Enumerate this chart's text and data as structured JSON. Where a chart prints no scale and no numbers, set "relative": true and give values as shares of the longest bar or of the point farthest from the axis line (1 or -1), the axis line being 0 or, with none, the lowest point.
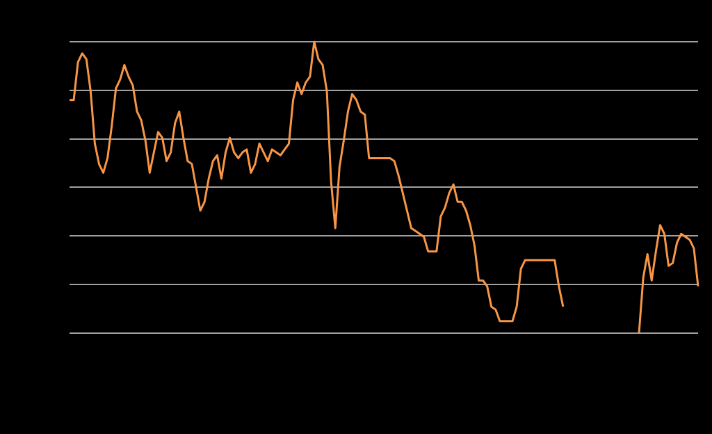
{
  "chart_data": {
    "type": "line",
    "relative": true,
    "grid": "y",
    "legend": false,
    "marker": "none",
    "line_style": "solid",
    "categories": [
      null,
      null,
      null,
      null,
      null,
      null,
      null,
      null,
      null,
      null,
      null,
      null,
      null,
      null,
      null,
      null,
      null,
      null,
      null,
      null,
      null,
      null,
      null,
      null,
      null,
      null,
      null,
      null,
      null,
      null,
      null,
      null,
      null,
      null,
      null,
      null,
      null,
      null,
      null,
      null,
      null,
      null,
      null,
      null,
      null,
      null,
      null,
      null,
      null,
      null,
      null,
      null,
      null,
      null,
      null,
      null,
      null,
      null,
      null,
      null,
      null,
      null,
      null,
      null,
      null,
      null,
      null,
      null,
      null,
      null,
      null,
      null,
      null,
      null,
      null,
      null,
      null,
      null,
      null,
      null,
      null,
      null,
      null,
      null,
      null,
      null,
      null,
      null,
      null,
      null,
      null,
      null,
      null,
      null,
      null,
      null,
      null,
      null,
      null,
      null,
      null,
      null,
      null,
      null,
      null,
      null,
      null,
      null,
      null,
      null,
      null,
      null,
      null,
      null,
      null,
      null,
      null,
      null,
      null,
      null,
      null,
      null,
      null,
      null,
      null,
      null,
      null,
      null,
      null,
      null,
      null,
      null,
      null,
      null,
      null,
      null,
      null,
      null,
      null,
      null,
      null,
      null,
      null,
      null,
      null,
      null,
      null,
      null,
      null,
      null
    ],
    "series": [
      {
        "color": "#f79646",
        "values": [
          0.8,
          0.8,
          0.93,
          0.96,
          0.94,
          0.83,
          0.65,
          0.58,
          0.55,
          0.6,
          0.71,
          0.84,
          0.87,
          0.92,
          0.88,
          0.85,
          0.76,
          0.73,
          0.66,
          0.55,
          0.62,
          0.69,
          0.67,
          0.59,
          0.62,
          0.72,
          0.76,
          0.67,
          0.59,
          0.58,
          0.5,
          0.42,
          0.45,
          0.53,
          0.59,
          0.61,
          0.53,
          0.62,
          0.67,
          0.62,
          0.6,
          0.62,
          0.63,
          0.55,
          0.58,
          0.65,
          0.62,
          0.59,
          0.63,
          0.62,
          0.61,
          0.63,
          0.65,
          0.8,
          0.86,
          0.82,
          0.86,
          0.88,
          1,
          0.94,
          0.92,
          0.83,
          0.52,
          0.36,
          0.57,
          0.66,
          0.76,
          0.82,
          0.8,
          0.76,
          0.75,
          0.6,
          0.6,
          0.6,
          0.6,
          0.6,
          0.6,
          0.59,
          0.54,
          0.48,
          0.42,
          0.36,
          0.35,
          0.34,
          0.33,
          0.28,
          0.28,
          0.28,
          0.4,
          0.43,
          0.48,
          0.51,
          0.45,
          0.45,
          0.42,
          0.37,
          0.3,
          0.18,
          0.18,
          0.16,
          0.09,
          0.08,
          0.04,
          0.04,
          0.04,
          0.04,
          0.09,
          0.22,
          0.25,
          0.25,
          0.25,
          0.25,
          0.25,
          0.25,
          0.25,
          0.25,
          0.16,
          0.09,
          null,
          null,
          null,
          null,
          null,
          null,
          null,
          null,
          null,
          null,
          null,
          null,
          null,
          null,
          null,
          null,
          null,
          null,
          null,
          null,
          null,
          null,
          null,
          null,
          null,
          null,
          null,
          null,
          null,
          null,
          null,
          null
        ]
      },
      {
        "color": "#f79646",
        "values": [
          null,
          null,
          null,
          null,
          null,
          null,
          null,
          null,
          null,
          null,
          null,
          null,
          null,
          null,
          null,
          null,
          null,
          null,
          null,
          null,
          null,
          null,
          null,
          null,
          null,
          null,
          null,
          null,
          null,
          null,
          null,
          null,
          null,
          null,
          null,
          null,
          null,
          null,
          null,
          null,
          null,
          null,
          null,
          null,
          null,
          null,
          null,
          null,
          null,
          null,
          null,
          null,
          null,
          null,
          null,
          null,
          null,
          null,
          null,
          null,
          null,
          null,
          null,
          null,
          null,
          null,
          null,
          null,
          null,
          null,
          null,
          null,
          null,
          null,
          null,
          null,
          null,
          null,
          null,
          null,
          null,
          null,
          null,
          null,
          null,
          null,
          null,
          null,
          null,
          null,
          null,
          null,
          null,
          null,
          null,
          null,
          null,
          null,
          null,
          null,
          null,
          null,
          null,
          null,
          null,
          null,
          null,
          null,
          null,
          null,
          null,
          null,
          null,
          null,
          null,
          null,
          null,
          null,
          null,
          null,
          null,
          null,
          null,
          null,
          null,
          null,
          null,
          null,
          null,
          null,
          null,
          null,
          null,
          null,
          null,
          0,
          0.19,
          0.27,
          0.18,
          0.28,
          0.37,
          0.34,
          0.23,
          0.24,
          0.31,
          0.34,
          0.33,
          0.32,
          0.29,
          0.16
        ]
      }
    ]
  }
}
